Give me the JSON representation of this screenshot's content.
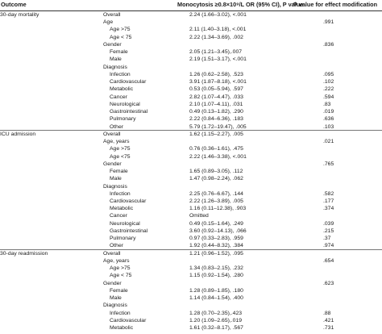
{
  "header": {
    "outcome": "Outcome",
    "monocytosis": "Monocytosis ≥0.8×10⁹/L OR (95% CI), P value",
    "p_effect": "P value for effect modification"
  },
  "rows": [
    {
      "outcome": "30-day mortality",
      "variable": "Overall",
      "indent": false,
      "value": "2.24 (1.66–3.02), <.001",
      "p": ""
    },
    {
      "outcome": "",
      "variable": "Age",
      "indent": false,
      "value": "",
      "p": ".991"
    },
    {
      "outcome": "",
      "variable": "Age >75",
      "indent": true,
      "value": "2.11 (1.40–3.18), <.001",
      "p": ""
    },
    {
      "outcome": "",
      "variable": "Age < 75",
      "indent": true,
      "value": "2.22 (1.34–3.69), .002",
      "p": ""
    },
    {
      "outcome": "",
      "variable": "Gender",
      "indent": false,
      "value": "",
      "p": ".836"
    },
    {
      "outcome": "",
      "variable": "Female",
      "indent": true,
      "value": "2.05 (1.21–3.45),.007",
      "p": ""
    },
    {
      "outcome": "",
      "variable": "Male",
      "indent": true,
      "value": "2.19 (1.51–3.17), <.001",
      "p": ""
    },
    {
      "outcome": "",
      "variable": "Diagnosis",
      "indent": false,
      "value": "",
      "p": ""
    },
    {
      "outcome": "",
      "variable": "Infection",
      "indent": true,
      "value": "1.26 (0.62–2.58), .523",
      "p": ".095"
    },
    {
      "outcome": "",
      "variable": "Cardiovascular",
      "indent": true,
      "value": "3.91 (1.87–8.18), <.001",
      "p": ".102"
    },
    {
      "outcome": "",
      "variable": "Metabolic",
      "indent": true,
      "value": "0.53 (0.05–5.94), .597",
      "p": ".222"
    },
    {
      "outcome": "",
      "variable": "Cancer",
      "indent": true,
      "value": "2.82 (1.07–4.47), .033",
      "p": ".594"
    },
    {
      "outcome": "",
      "variable": "Neurological",
      "indent": true,
      "value": "2.10 (1.07–4.11), .031",
      "p": ".83"
    },
    {
      "outcome": "",
      "variable": "Gastrointestinal",
      "indent": true,
      "value": "0.49 (0.13–1.82), .290",
      "p": ".019"
    },
    {
      "outcome": "",
      "variable": "Pulmonary",
      "indent": true,
      "value": "2.22 (0.84–6.36), .183",
      "p": ".636"
    },
    {
      "outcome": "",
      "variable": "Other",
      "indent": true,
      "value": "5.79 (1.72–19.47), .005",
      "p": ".103"
    },
    {
      "outcome": "ICU admission",
      "variable": "Overall",
      "indent": false,
      "value": "1.62 (1.15–2.27), .005",
      "p": ""
    },
    {
      "outcome": "",
      "variable": "Age, years",
      "indent": false,
      "value": "",
      "p": ".021"
    },
    {
      "outcome": "",
      "variable": "Age >75",
      "indent": true,
      "value": "0.76 (0.36–1.61), .475",
      "p": ""
    },
    {
      "outcome": "",
      "variable": "Age <75",
      "indent": true,
      "value": "2.22 (1.46–3.38), <.001",
      "p": ""
    },
    {
      "outcome": "",
      "variable": "Gender",
      "indent": false,
      "value": "",
      "p": ".765"
    },
    {
      "outcome": "",
      "variable": "Female",
      "indent": true,
      "value": "1.65 (0.89–3.05), .112",
      "p": ""
    },
    {
      "outcome": "",
      "variable": "Male",
      "indent": true,
      "value": "1.47 (0.98–2.24), .062",
      "p": ""
    },
    {
      "outcome": "",
      "variable": "Diagnosis",
      "indent": false,
      "value": "",
      "p": ""
    },
    {
      "outcome": "",
      "variable": "Infection",
      "indent": true,
      "value": "2.25 (0.76–6.67), .144",
      "p": ".582"
    },
    {
      "outcome": "",
      "variable": "Cardiovascular",
      "indent": true,
      "value": "2.22 (1.26–3.89), .005",
      "p": ".177"
    },
    {
      "outcome": "",
      "variable": "Metabolic",
      "indent": true,
      "value": "1.16 (0.11–12.38), .903",
      "p": ".374"
    },
    {
      "outcome": "",
      "variable": "Cancer",
      "indent": true,
      "value": "Omitted",
      "p": ""
    },
    {
      "outcome": "",
      "variable": "Neurological",
      "indent": true,
      "value": "0.49 (0.15–1.64), .249",
      "p": ".039"
    },
    {
      "outcome": "",
      "variable": "Gastrointestinal",
      "indent": true,
      "value": "3.60 (0.92–14.13), .066",
      "p": ".215"
    },
    {
      "outcome": "",
      "variable": "Pulmonary",
      "indent": true,
      "value": "0.97 (0.33–2.83), .959",
      "p": ".37"
    },
    {
      "outcome": "",
      "variable": "Other",
      "indent": true,
      "value": "1.92 (0.44–8.32), .384",
      "p": ".974"
    },
    {
      "outcome": "30-day readmission",
      "variable": "Overall",
      "indent": false,
      "value": "1.21 (0.96–1.52), .095",
      "p": ""
    },
    {
      "outcome": "",
      "variable": "Age, years",
      "indent": false,
      "value": "",
      "p": ".654"
    },
    {
      "outcome": "",
      "variable": "Age >75",
      "indent": true,
      "value": "1.34 (0.83–2.15), .232",
      "p": ""
    },
    {
      "outcome": "",
      "variable": "Age < 75",
      "indent": true,
      "value": "1.15 (0.92–1.54), .280",
      "p": ""
    },
    {
      "outcome": "",
      "variable": "Gender",
      "indent": false,
      "value": "",
      "p": ".623"
    },
    {
      "outcome": "",
      "variable": "Female",
      "indent": true,
      "value": "1.28 (0.89–1.85), .180",
      "p": ""
    },
    {
      "outcome": "",
      "variable": "Male",
      "indent": true,
      "value": "1.14 (0.84–1.54), .400",
      "p": ""
    },
    {
      "outcome": "",
      "variable": "Diagnosis",
      "indent": false,
      "value": "",
      "p": ""
    },
    {
      "outcome": "",
      "variable": "Infection",
      "indent": true,
      "value": "1.28 (0.70–2.35),.423",
      "p": ".88"
    },
    {
      "outcome": "",
      "variable": "Cardiovascular",
      "indent": true,
      "value": "1.20 (1.09–2.65),.019",
      "p": ".421"
    },
    {
      "outcome": "",
      "variable": "Metabolic",
      "indent": true,
      "value": "1.61 (0.32–8.17), .567",
      "p": ".731"
    }
  ]
}
